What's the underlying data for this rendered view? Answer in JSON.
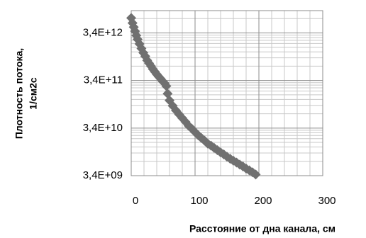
{
  "chart_data": {
    "type": "scatter",
    "x_label": "Расстояние от дна канала, см",
    "y_label": [
      "Плотность потока,",
      "1/см2с"
    ],
    "color": "#707070",
    "log_y": true,
    "grid": true,
    "minor_grid": true,
    "xlim": [
      0,
      300
    ],
    "xticks": [
      0,
      100,
      200,
      300
    ],
    "ylim": [
      3400000000,
      10000000000000
    ],
    "yticks": [
      {
        "value": 3400000000,
        "label": "3,4E+09"
      },
      {
        "value": 34000000000,
        "label": "3,4E+10"
      },
      {
        "value": 340000000000,
        "label": "3,4E+11"
      },
      {
        "value": 3400000000000,
        "label": "3,4E+12"
      }
    ],
    "x": [
      0,
      2,
      4,
      6,
      8,
      10,
      13,
      16,
      19,
      22,
      25,
      28,
      31,
      34,
      37,
      40,
      43,
      46,
      49,
      52,
      55,
      57,
      60,
      65,
      70,
      75,
      80,
      85,
      90,
      95,
      100,
      105,
      110,
      115,
      120,
      125,
      130,
      135,
      140,
      145,
      150,
      155,
      160,
      165,
      170,
      175,
      180,
      185,
      190,
      195
    ],
    "y": [
      7000000000000,
      5500000000000,
      4500000000000,
      3700000000000,
      3000000000000,
      2500000000000,
      2000000000000,
      1600000000000,
      1300000000000,
      1100000000000,
      900000000000,
      780000000000,
      680000000000,
      590000000000,
      520000000000,
      460000000000,
      410000000000,
      370000000000,
      330000000000,
      300000000000,
      260000000000,
      180000000000,
      130000000000,
      100000000000,
      80000000000,
      66000000000,
      55000000000,
      46000000000,
      38000000000,
      33000000000,
      28000000000,
      24000000000,
      21000000000,
      18500000000,
      16000000000,
      14500000000,
      13000000000,
      11700000000,
      10500000000,
      9500000000,
      8500000000,
      7700000000,
      7000000000,
      6400000000,
      5800000000,
      5300000000,
      4800000000,
      4400000000,
      4000000000,
      3600000000
    ]
  }
}
